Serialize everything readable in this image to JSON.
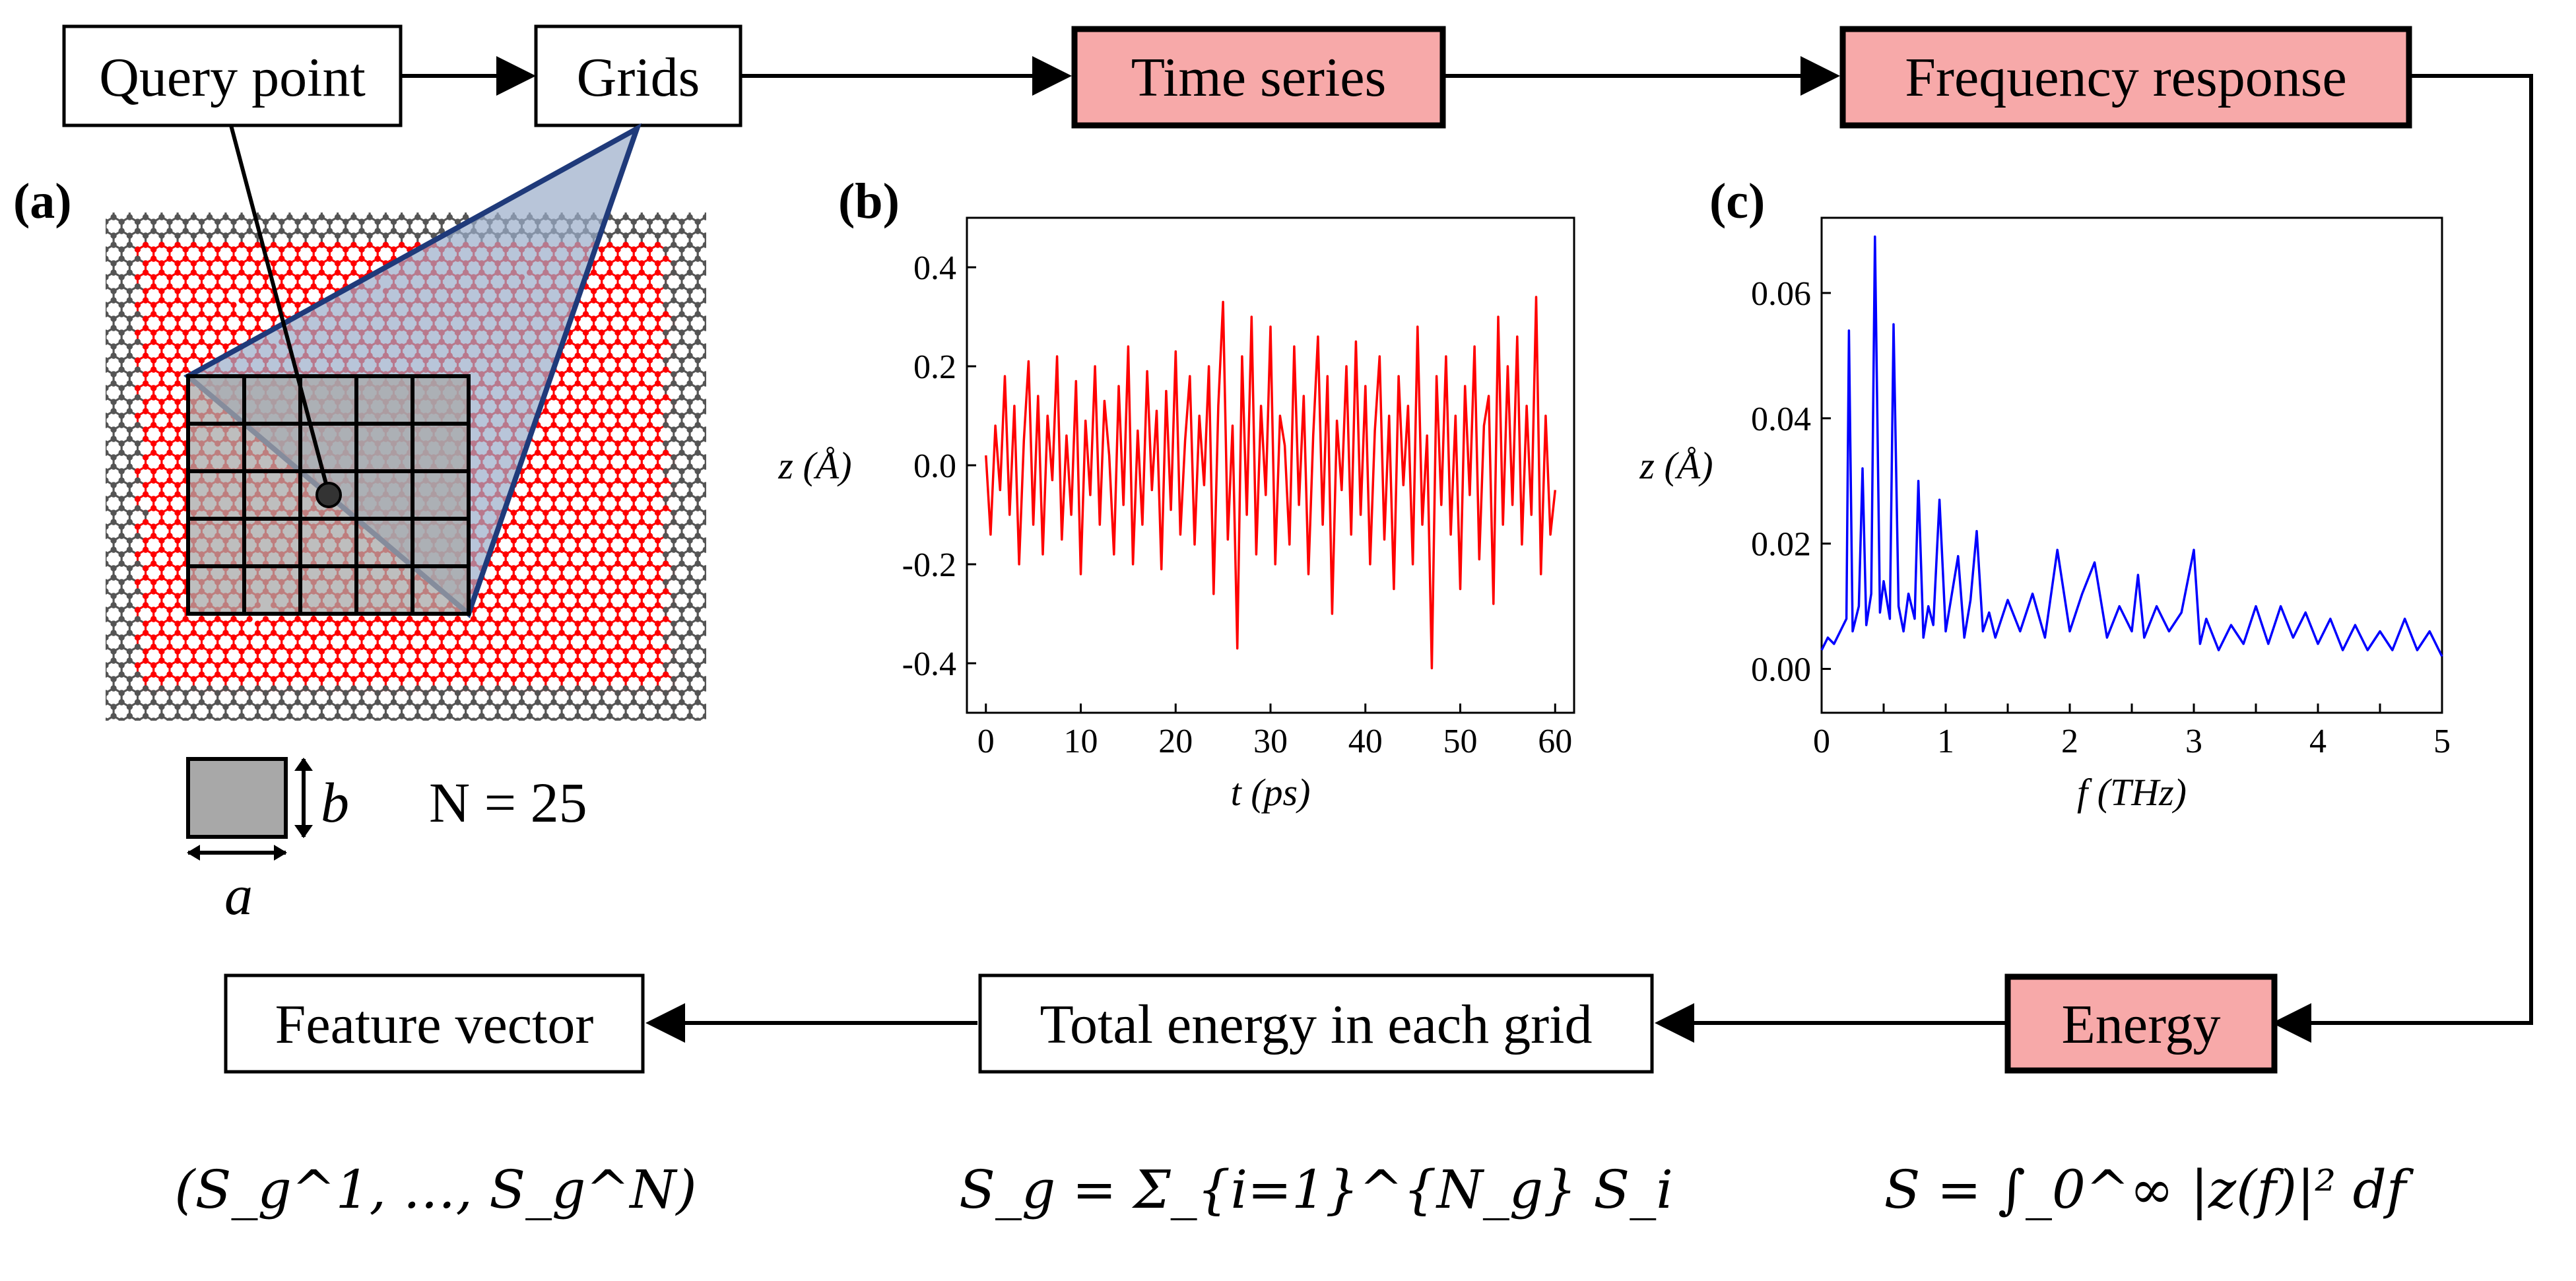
{
  "boxes": {
    "query_point": "Query point",
    "grids": "Grids",
    "time_series": "Time series",
    "frequency_response": "Frequency response",
    "energy": "Energy",
    "total_energy": "Total energy in each grid",
    "feature_vector": "Feature vector"
  },
  "panel_labels": {
    "a": "(a)",
    "b": "(b)",
    "c": "(c)"
  },
  "grid_cell": {
    "width_symbol": "a",
    "height_symbol": "b",
    "count_text": "N = 25"
  },
  "formulas": {
    "feature_vector": "(S_g^1, …, S_g^N)",
    "grid_energy": "S_g = Σ_{i=1}^{N_g} S_i",
    "energy": "S = ∫_0^∞ |z(f)|² df"
  },
  "colors": {
    "highlight_box": "#f7a9a9",
    "time_series_line": "#ff0000",
    "frequency_line": "#0000ff",
    "atom_red": "#ff0000",
    "atom_gray": "#555555",
    "triangle_fill": "#9aacc9",
    "triangle_edge": "#1f3a7a"
  },
  "chart_data": [
    {
      "type": "line",
      "panel": "(b)",
      "title": "",
      "xlabel": "t (ps)",
      "ylabel": "z (Å)",
      "xlim": [
        -2,
        62
      ],
      "ylim": [
        -0.5,
        0.5
      ],
      "xticks": [
        0,
        10,
        20,
        30,
        40,
        50,
        60
      ],
      "yticks": [
        -0.4,
        -0.2,
        0.0,
        0.2,
        0.4
      ],
      "xtick_labels": [
        "0",
        "10",
        "20",
        "30",
        "40",
        "50",
        "60"
      ],
      "ytick_labels": [
        "-0.4",
        "-0.2",
        "0.0",
        "0.2",
        "0.4"
      ],
      "x": [
        0,
        0.5,
        1,
        1.5,
        2,
        2.5,
        3,
        3.5,
        4,
        4.5,
        5,
        5.5,
        6,
        6.5,
        7,
        7.5,
        8,
        8.5,
        9,
        9.5,
        10,
        10.5,
        11,
        11.5,
        12,
        12.5,
        13,
        13.5,
        14,
        14.5,
        15,
        15.5,
        16,
        16.5,
        17,
        17.5,
        18,
        18.5,
        19,
        19.5,
        20,
        20.5,
        21,
        21.5,
        22,
        22.5,
        23,
        23.5,
        24,
        24.5,
        25,
        25.5,
        26,
        26.5,
        27,
        27.5,
        28,
        28.5,
        29,
        29.5,
        30,
        30.5,
        31,
        31.5,
        32,
        32.5,
        33,
        33.5,
        34,
        34.5,
        35,
        35.5,
        36,
        36.5,
        37,
        37.5,
        38,
        38.5,
        39,
        39.5,
        40,
        40.5,
        41,
        41.5,
        42,
        42.5,
        43,
        43.5,
        44,
        44.5,
        45,
        45.5,
        46,
        46.5,
        47,
        47.5,
        48,
        48.5,
        49,
        49.5,
        50,
        50.5,
        51,
        51.5,
        52,
        52.5,
        53,
        53.5,
        54,
        54.5,
        55,
        55.5,
        56,
        56.5,
        57,
        57.5,
        58,
        58.5,
        59,
        59.5,
        60
      ],
      "values": [
        0.02,
        -0.14,
        0.08,
        -0.05,
        0.18,
        -0.1,
        0.12,
        -0.2,
        0.05,
        0.21,
        -0.12,
        0.14,
        -0.18,
        0.1,
        -0.03,
        0.22,
        -0.15,
        0.06,
        -0.1,
        0.17,
        -0.22,
        0.09,
        -0.06,
        0.2,
        -0.12,
        0.13,
        0.02,
        -0.18,
        0.16,
        -0.08,
        0.24,
        -0.2,
        0.07,
        -0.12,
        0.19,
        -0.05,
        0.11,
        -0.21,
        0.15,
        -0.09,
        0.23,
        -0.14,
        0.05,
        0.18,
        -0.16,
        0.1,
        -0.04,
        0.2,
        -0.26,
        0.12,
        0.33,
        -0.15,
        0.08,
        -0.37,
        0.22,
        -0.1,
        0.3,
        -0.18,
        0.12,
        -0.06,
        0.28,
        -0.2,
        0.1,
        0.04,
        -0.16,
        0.24,
        -0.08,
        0.14,
        -0.22,
        0.06,
        0.26,
        -0.12,
        0.18,
        -0.3,
        0.09,
        -0.05,
        0.2,
        -0.14,
        0.25,
        -0.1,
        0.16,
        -0.2,
        0.07,
        0.22,
        -0.15,
        0.1,
        -0.25,
        0.18,
        -0.04,
        0.12,
        -0.2,
        0.28,
        -0.12,
        0.06,
        -0.41,
        0.18,
        -0.08,
        0.22,
        -0.14,
        0.1,
        -0.25,
        0.16,
        -0.06,
        0.24,
        -0.19,
        0.08,
        0.14,
        -0.28,
        0.3,
        -0.12,
        0.2,
        -0.08,
        0.26,
        -0.16,
        0.12,
        -0.1,
        0.34,
        -0.22,
        0.1,
        -0.14,
        -0.05
      ]
    },
    {
      "type": "line",
      "panel": "(c)",
      "title": "",
      "xlabel": "f (THz)",
      "ylabel": "z (Å)",
      "xlim": [
        0,
        5
      ],
      "ylim": [
        -0.007,
        0.072
      ],
      "xticks": [
        0,
        0.5,
        1,
        1.5,
        2,
        2.5,
        3,
        3.5,
        4,
        4.5,
        5
      ],
      "xtick_labels": [
        "0",
        "",
        "1",
        "",
        "2",
        "",
        "3",
        "",
        "4",
        "",
        "5"
      ],
      "yticks": [
        0.0,
        0.02,
        0.04,
        0.06
      ],
      "ytick_labels": [
        "0.00",
        "0.02",
        "0.04",
        "0.06"
      ],
      "x": [
        0,
        0.05,
        0.1,
        0.15,
        0.2,
        0.22,
        0.25,
        0.3,
        0.33,
        0.36,
        0.4,
        0.43,
        0.47,
        0.5,
        0.55,
        0.58,
        0.62,
        0.66,
        0.7,
        0.75,
        0.78,
        0.82,
        0.86,
        0.9,
        0.95,
        1.0,
        1.05,
        1.1,
        1.15,
        1.2,
        1.25,
        1.3,
        1.35,
        1.4,
        1.5,
        1.6,
        1.7,
        1.8,
        1.9,
        2.0,
        2.1,
        2.2,
        2.3,
        2.4,
        2.5,
        2.55,
        2.6,
        2.7,
        2.8,
        2.9,
        3.0,
        3.05,
        3.1,
        3.2,
        3.3,
        3.4,
        3.5,
        3.6,
        3.7,
        3.8,
        3.9,
        4.0,
        4.1,
        4.2,
        4.3,
        4.4,
        4.5,
        4.6,
        4.7,
        4.8,
        4.9,
        5.0
      ],
      "values": [
        0.003,
        0.005,
        0.004,
        0.006,
        0.008,
        0.054,
        0.006,
        0.01,
        0.032,
        0.007,
        0.012,
        0.069,
        0.009,
        0.014,
        0.008,
        0.055,
        0.01,
        0.006,
        0.012,
        0.008,
        0.03,
        0.005,
        0.01,
        0.007,
        0.027,
        0.006,
        0.012,
        0.018,
        0.005,
        0.011,
        0.022,
        0.006,
        0.009,
        0.005,
        0.011,
        0.006,
        0.012,
        0.005,
        0.019,
        0.006,
        0.012,
        0.017,
        0.005,
        0.01,
        0.006,
        0.015,
        0.005,
        0.01,
        0.006,
        0.009,
        0.019,
        0.004,
        0.008,
        0.003,
        0.007,
        0.004,
        0.01,
        0.004,
        0.01,
        0.005,
        0.009,
        0.004,
        0.008,
        0.003,
        0.007,
        0.003,
        0.006,
        0.003,
        0.008,
        0.003,
        0.006,
        0.002
      ]
    }
  ]
}
